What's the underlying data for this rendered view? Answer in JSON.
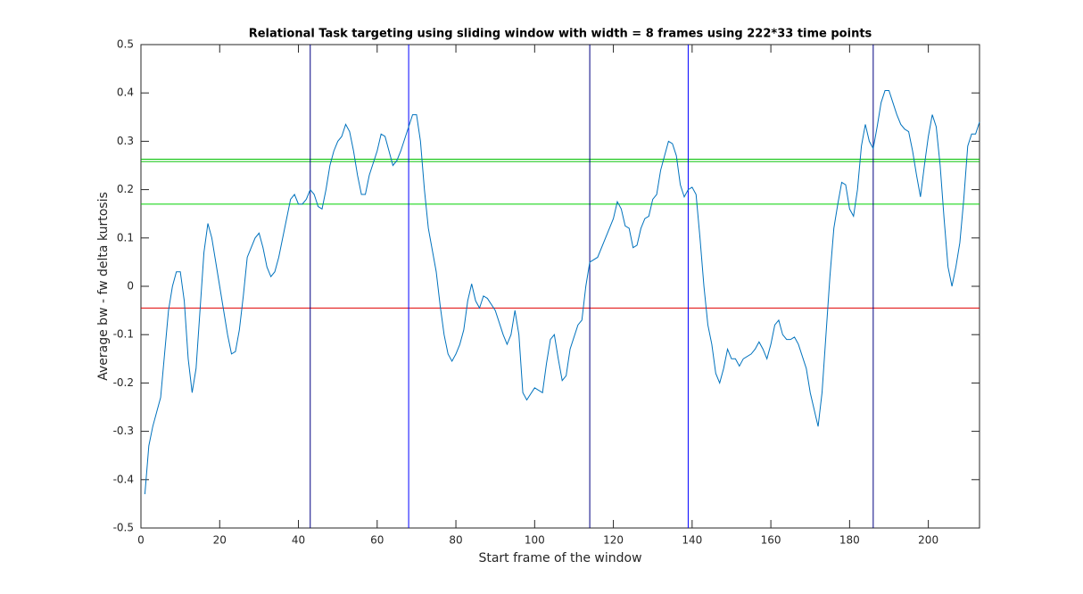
{
  "chart_data": {
    "type": "line",
    "title": "Relational Task targeting using sliding window with width = 8 frames using 222*33 time points",
    "x_label": "Start frame of the window",
    "y_label": "Average bw - fw delta kurtosis",
    "color": "#0072bd",
    "x": [
      1,
      2,
      3,
      4,
      5,
      6,
      7,
      8,
      9,
      10,
      11,
      12,
      13,
      14,
      15,
      16,
      17,
      18,
      20,
      22,
      23,
      24,
      25,
      26,
      27,
      29,
      30,
      31,
      32,
      33,
      34,
      35,
      37,
      38,
      39,
      40,
      41,
      42,
      43,
      44,
      45,
      46,
      47,
      48,
      49,
      50,
      51,
      52,
      53,
      54,
      55,
      56,
      57,
      58,
      60,
      61,
      62,
      63,
      64,
      65,
      66,
      68,
      69,
      70,
      71,
      72,
      73,
      75,
      76,
      77,
      78,
      79,
      80,
      81,
      82,
      83,
      84,
      85,
      86,
      87,
      88,
      90,
      92,
      93,
      94,
      95,
      96,
      97,
      98,
      100,
      102,
      103,
      104,
      105,
      106,
      107,
      108,
      109,
      111,
      112,
      113,
      114,
      116,
      118,
      120,
      121,
      122,
      123,
      124,
      125,
      126,
      127,
      128,
      129,
      130,
      131,
      132,
      133,
      134,
      135,
      136,
      137,
      138,
      139,
      140,
      141,
      142,
      143,
      144,
      145,
      146,
      147,
      148,
      149,
      150,
      151,
      152,
      153,
      155,
      156,
      157,
      158,
      159,
      160,
      161,
      162,
      163,
      164,
      165,
      166,
      167,
      169,
      170,
      171,
      172,
      173,
      174,
      175,
      176,
      177,
      178,
      179,
      180,
      181,
      182,
      183,
      184,
      185,
      186,
      187,
      188,
      189,
      190,
      191,
      192,
      193,
      194,
      195,
      196,
      197,
      198,
      199,
      200,
      201,
      202,
      203,
      204,
      205,
      206,
      207,
      208,
      209,
      210,
      211,
      212,
      213
    ],
    "values": [
      -0.43,
      -0.33,
      -0.29,
      -0.26,
      -0.23,
      -0.14,
      -0.05,
      0,
      0.03,
      0.03,
      -0.03,
      -0.15,
      -0.22,
      -0.17,
      -0.05,
      0.07,
      0.13,
      0.1,
      0,
      -0.1,
      -0.14,
      -0.135,
      -0.09,
      -0.02,
      0.06,
      0.1,
      0.11,
      0.08,
      0.04,
      0.02,
      0.03,
      0.06,
      0.14,
      0.18,
      0.19,
      0.17,
      0.17,
      0.18,
      0.2,
      0.19,
      0.165,
      0.16,
      0.2,
      0.25,
      0.28,
      0.3,
      0.31,
      0.335,
      0.32,
      0.28,
      0.23,
      0.19,
      0.19,
      0.23,
      0.28,
      0.315,
      0.31,
      0.28,
      0.25,
      0.26,
      0.28,
      0.33,
      0.355,
      0.355,
      0.3,
      0.2,
      0.12,
      0.03,
      -0.04,
      -0.1,
      -0.14,
      -0.155,
      -0.14,
      -0.12,
      -0.09,
      -0.03,
      0.005,
      -0.03,
      -0.045,
      -0.02,
      -0.025,
      -0.05,
      -0.1,
      -0.12,
      -0.1,
      -0.05,
      -0.1,
      -0.22,
      -0.235,
      -0.21,
      -0.22,
      -0.16,
      -0.11,
      -0.1,
      -0.15,
      -0.195,
      -0.185,
      -0.13,
      -0.08,
      -0.07,
      0,
      0.05,
      0.06,
      0.1,
      0.14,
      0.175,
      0.16,
      0.125,
      0.12,
      0.08,
      0.085,
      0.12,
      0.14,
      0.145,
      0.18,
      0.19,
      0.24,
      0.27,
      0.3,
      0.295,
      0.27,
      0.21,
      0.185,
      0.2,
      0.205,
      0.19,
      0.1,
      0,
      -0.08,
      -0.12,
      -0.18,
      -0.2,
      -0.17,
      -0.13,
      -0.15,
      -0.15,
      -0.165,
      -0.15,
      -0.14,
      -0.13,
      -0.115,
      -0.13,
      -0.15,
      -0.12,
      -0.08,
      -0.07,
      -0.1,
      -0.11,
      -0.11,
      -0.105,
      -0.12,
      -0.17,
      -0.22,
      -0.255,
      -0.29,
      -0.22,
      -0.1,
      0.02,
      0.12,
      0.17,
      0.215,
      0.21,
      0.16,
      0.145,
      0.2,
      0.29,
      0.335,
      0.3,
      0.285,
      0.33,
      0.38,
      0.405,
      0.405,
      0.38,
      0.355,
      0.335,
      0.325,
      0.32,
      0.28,
      0.23,
      0.185,
      0.25,
      0.31,
      0.355,
      0.33,
      0.25,
      0.14,
      0.04,
      0,
      0.04,
      0.09,
      0.18,
      0.29,
      0.315,
      0.315,
      0.34
    ],
    "hlines": [
      {
        "value": 0.263,
        "color": "#00c000"
      },
      {
        "value": 0.258,
        "color": "#00c000"
      },
      {
        "value": 0.17,
        "color": "#00d000"
      },
      {
        "value": -0.045,
        "color": "#e00000"
      }
    ],
    "vlines": [
      {
        "value": 43,
        "color": "#000080"
      },
      {
        "value": 68,
        "color": "#0000ff"
      },
      {
        "value": 114,
        "color": "#000080"
      },
      {
        "value": 139,
        "color": "#0000ff"
      },
      {
        "value": 186,
        "color": "#000080"
      }
    ],
    "xlim": [
      0,
      213
    ],
    "ylim": [
      -0.5,
      0.5
    ],
    "xticks": [
      0,
      20,
      40,
      60,
      80,
      100,
      120,
      140,
      160,
      180,
      200
    ],
    "yticks": [
      -0.5,
      -0.4,
      -0.3,
      -0.2,
      -0.1,
      0,
      0.1,
      0.2,
      0.3,
      0.4,
      0.5
    ]
  }
}
